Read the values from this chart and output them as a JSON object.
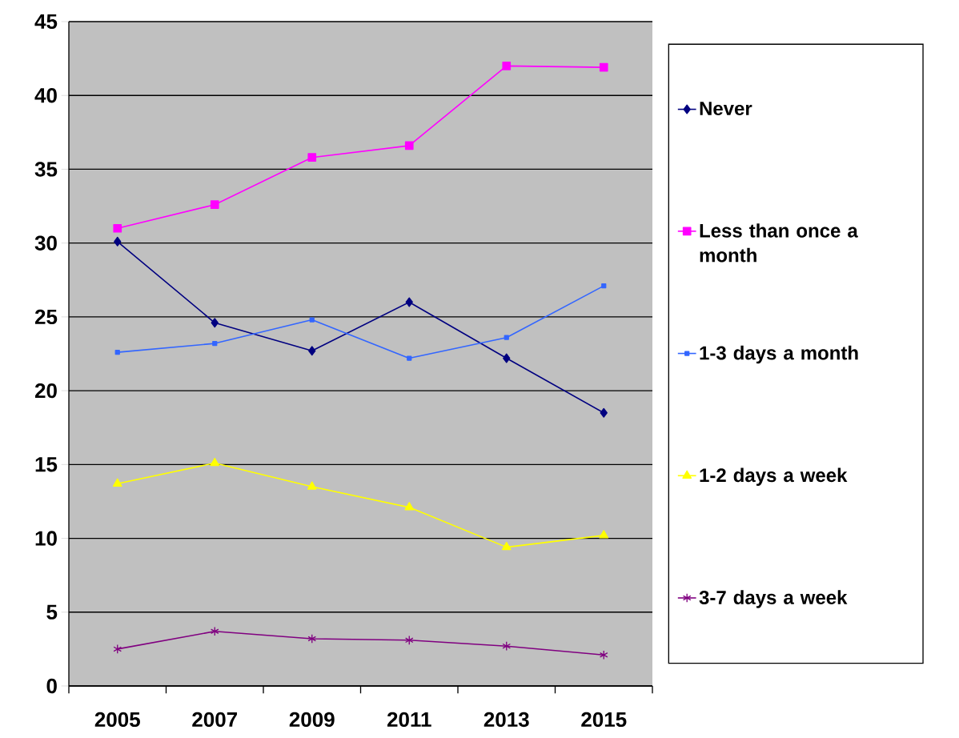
{
  "chart_data": {
    "type": "line",
    "categories": [
      "2005",
      "2007",
      "2009",
      "2011",
      "2013",
      "2015"
    ],
    "series": [
      {
        "name": "Never",
        "color": "#000080",
        "marker": "diamond",
        "values": [
          30.1,
          24.6,
          22.7,
          26.0,
          22.2,
          18.5
        ]
      },
      {
        "name": "Less than once a month",
        "color": "#ff00ff",
        "marker": "square",
        "values": [
          31.0,
          32.6,
          35.8,
          36.6,
          42.0,
          41.9
        ]
      },
      {
        "name": "1-3 days a month",
        "color": "#3366ff",
        "marker": "square",
        "values": [
          22.6,
          23.2,
          24.8,
          22.2,
          23.6,
          27.1
        ]
      },
      {
        "name": "1-2 days a week",
        "color": "#ffff00",
        "marker": "triangle",
        "values": [
          13.7,
          15.1,
          13.5,
          12.1,
          9.4,
          10.2
        ]
      },
      {
        "name": "3-7 days a week",
        "color": "#800080",
        "marker": "cross",
        "values": [
          2.5,
          3.7,
          3.2,
          3.1,
          2.7,
          2.1
        ]
      }
    ],
    "ylim": [
      0,
      45
    ],
    "yticks": [
      0,
      5,
      10,
      15,
      20,
      25,
      30,
      35,
      40,
      45
    ],
    "grid": "y",
    "legend": "right"
  }
}
